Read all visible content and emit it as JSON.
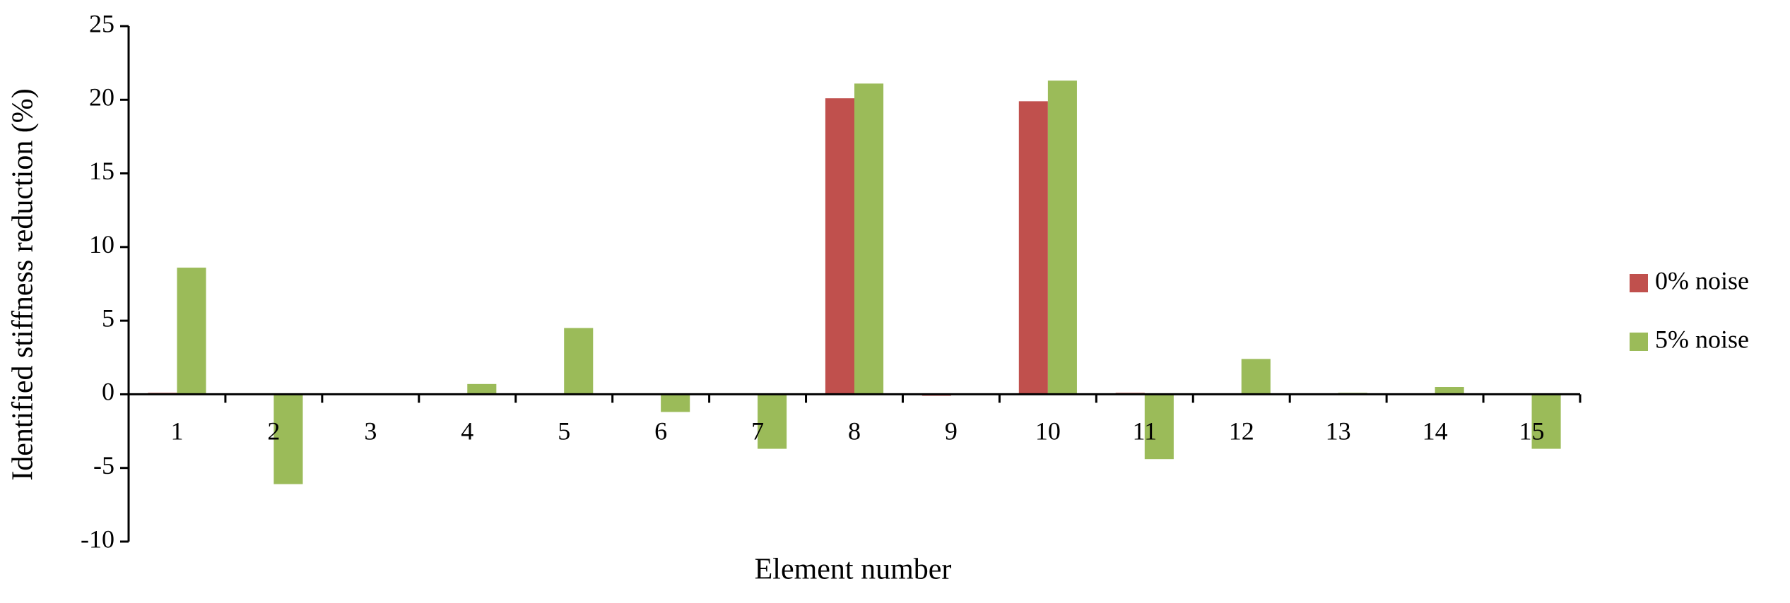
{
  "chart_data": {
    "type": "bar",
    "x_label": "Element number",
    "y_label": "Identified stiffness reduction (%)",
    "categories": [
      "1",
      "2",
      "3",
      "4",
      "5",
      "6",
      "7",
      "8",
      "9",
      "10",
      "11",
      "12",
      "13",
      "14",
      "15"
    ],
    "series": [
      {
        "name": "0% noise",
        "color": "#c0504d",
        "values": [
          0.1,
          0,
          0,
          0,
          0,
          0,
          0,
          20.1,
          -0.1,
          19.9,
          0.1,
          0,
          0,
          0,
          0
        ]
      },
      {
        "name": "5% noise",
        "color": "#9bbb59",
        "values": [
          8.6,
          -6.1,
          0,
          0.7,
          4.5,
          -1.2,
          -3.7,
          21.1,
          0,
          21.3,
          -4.4,
          2.4,
          0.1,
          0.5,
          -3.7
        ]
      }
    ],
    "ylim": [
      -10,
      25
    ],
    "yticks": [
      -10,
      -5,
      0,
      5,
      10,
      15,
      20,
      25
    ],
    "grid": false,
    "legend": "right"
  }
}
